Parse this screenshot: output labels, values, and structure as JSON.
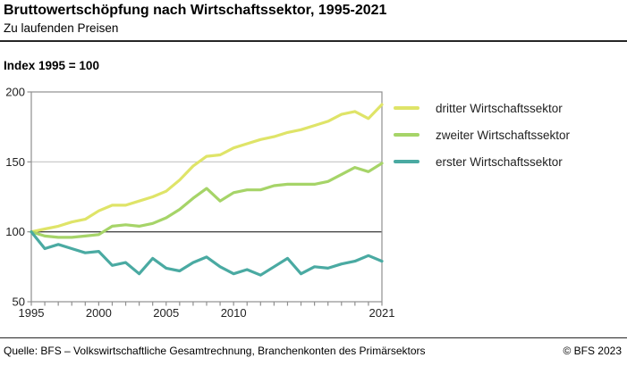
{
  "header": {
    "title": "Bruttowertschöpfung nach Wirtschaftssektor, 1995-2021",
    "subtitle": "Zu laufenden Preisen"
  },
  "index_note": "Index 1995 = 100",
  "chart_data": {
    "type": "line",
    "title": "Bruttowertschöpfung nach Wirtschaftssektor, 1995-2021",
    "subtitle": "Zu laufenden Preisen",
    "ylabel": "Index 1995 = 100",
    "xlabel": "",
    "x": [
      1995,
      1996,
      1997,
      1998,
      1999,
      2000,
      2001,
      2002,
      2003,
      2004,
      2005,
      2006,
      2007,
      2008,
      2009,
      2010,
      2011,
      2012,
      2013,
      2014,
      2015,
      2016,
      2017,
      2018,
      2019,
      2020,
      2021
    ],
    "series": [
      {
        "name": "dritter Wirtschaftssektor",
        "color": "#dfe468",
        "values": [
          100,
          102,
          104,
          107,
          109,
          115,
          119,
          119,
          122,
          125,
          129,
          137,
          147,
          154,
          155,
          160,
          163,
          166,
          168,
          171,
          173,
          176,
          179,
          184,
          186,
          181,
          191
        ]
      },
      {
        "name": "zweiter Wirtschaftssektor",
        "color": "#a6d468",
        "values": [
          100,
          97,
          96,
          96,
          97,
          98,
          104,
          105,
          104,
          106,
          110,
          116,
          124,
          131,
          122,
          128,
          130,
          130,
          133,
          134,
          134,
          134,
          136,
          141,
          146,
          143,
          149
        ]
      },
      {
        "name": "erster Wirtschaftssektor",
        "color": "#4aaaa2",
        "values": [
          100,
          88,
          91,
          88,
          85,
          86,
          76,
          78,
          70,
          81,
          74,
          72,
          78,
          82,
          75,
          70,
          73,
          69,
          75,
          81,
          70,
          75,
          74,
          77,
          79,
          83,
          79
        ]
      }
    ],
    "ylim": [
      50,
      200
    ],
    "yticks": [
      50,
      100,
      150,
      200
    ],
    "xtick_labels": [
      1995,
      2000,
      2005,
      2010,
      2021
    ],
    "baseline": 100,
    "grid": "horizontal",
    "legend_position": "right",
    "frame_color": "#8f8f8f",
    "grid_color": "#c4c4c4",
    "baseline_color": "#4a4a4a"
  },
  "footer": {
    "source": "Quelle: BFS – Volkswirtschaftliche Gesamtrechnung, Branchenkonten des Primärsektors",
    "copyright": "© BFS 2023"
  }
}
